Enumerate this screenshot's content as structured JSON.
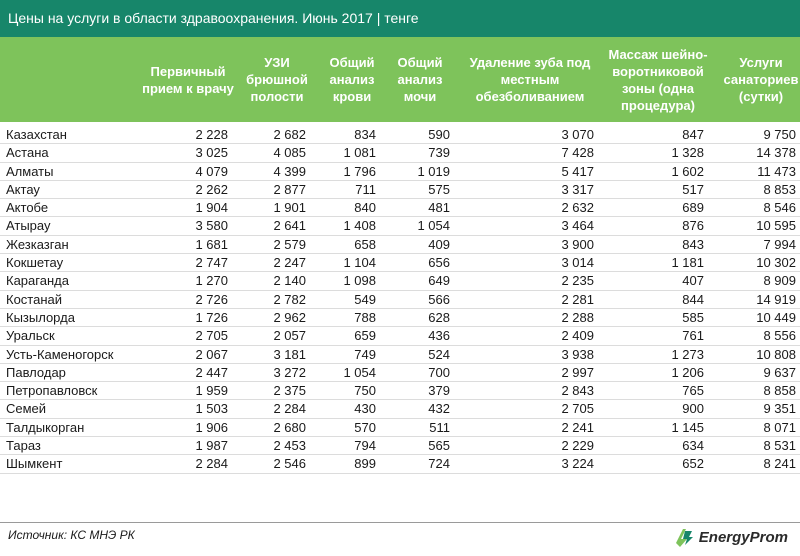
{
  "title": "Цены на услуги в области здравоохранения. Июнь 2017 | тенге",
  "chart_data": {
    "type": "table",
    "columns": [
      "",
      "Первичный прием к врачу",
      "УЗИ брюшной полости",
      "Общий анализ крови",
      "Общий анализ мочи",
      "Удаление зуба под местным обезболиванием",
      "Массаж шейно-воротниковой зоны (одна процедура)",
      "Услуги санаториев (сутки)"
    ],
    "rows": [
      {
        "region": "Казахстан",
        "values": [
          "2 228",
          "2 682",
          "834",
          "590",
          "3 070",
          "847",
          "9 750"
        ]
      },
      {
        "region": "Астана",
        "values": [
          "3 025",
          "4 085",
          "1 081",
          "739",
          "7 428",
          "1 328",
          "14 378"
        ]
      },
      {
        "region": "Алматы",
        "values": [
          "4 079",
          "4 399",
          "1 796",
          "1 019",
          "5 417",
          "1 602",
          "11 473"
        ]
      },
      {
        "region": "Актау",
        "values": [
          "2 262",
          "2 877",
          "711",
          "575",
          "3 317",
          "517",
          "8 853"
        ]
      },
      {
        "region": "Актобе",
        "values": [
          "1 904",
          "1 901",
          "840",
          "481",
          "2 632",
          "689",
          "8 546"
        ]
      },
      {
        "region": "Атырау",
        "values": [
          "3 580",
          "2 641",
          "1 408",
          "1 054",
          "3 464",
          "876",
          "10 595"
        ]
      },
      {
        "region": "Жезказган",
        "values": [
          "1 681",
          "2 579",
          "658",
          "409",
          "3 900",
          "843",
          "7 994"
        ]
      },
      {
        "region": "Кокшетау",
        "values": [
          "2 747",
          "2 247",
          "1 104",
          "656",
          "3 014",
          "1 181",
          "10 302"
        ]
      },
      {
        "region": "Караганда",
        "values": [
          "1 270",
          "2 140",
          "1 098",
          "649",
          "2 235",
          "407",
          "8 909"
        ]
      },
      {
        "region": "Костанай",
        "values": [
          "2 726",
          "2 782",
          "549",
          "566",
          "2 281",
          "844",
          "14 919"
        ]
      },
      {
        "region": "Кызылорда",
        "values": [
          "1 726",
          "2 962",
          "788",
          "628",
          "2 288",
          "585",
          "10 449"
        ]
      },
      {
        "region": "Уральск",
        "values": [
          "2 705",
          "2 057",
          "659",
          "436",
          "2 409",
          "761",
          "8 556"
        ]
      },
      {
        "region": "Усть-Каменогорск",
        "values": [
          "2 067",
          "3 181",
          "749",
          "524",
          "3 938",
          "1 273",
          "10 808"
        ]
      },
      {
        "region": "Павлодар",
        "values": [
          "2 447",
          "3 272",
          "1 054",
          "700",
          "2 997",
          "1 206",
          "9 637"
        ]
      },
      {
        "region": "Петропавловск",
        "values": [
          "1 959",
          "2 375",
          "750",
          "379",
          "2 843",
          "765",
          "8 858"
        ]
      },
      {
        "region": "Семей",
        "values": [
          "1 503",
          "2 284",
          "430",
          "432",
          "2 705",
          "900",
          "9 351"
        ]
      },
      {
        "region": "Талдыкорган",
        "values": [
          "1 906",
          "2 680",
          "570",
          "511",
          "2 241",
          "1 145",
          "8 071"
        ]
      },
      {
        "region": "Тараз",
        "values": [
          "1 987",
          "2 453",
          "794",
          "565",
          "2 229",
          "634",
          "8 531"
        ]
      },
      {
        "region": "Шымкент",
        "values": [
          "2 284",
          "2 546",
          "899",
          "724",
          "3 224",
          "652",
          "8 241"
        ]
      }
    ]
  },
  "footer": {
    "source": "Источник: КС МНЭ РК",
    "logo_text": "EnergyProm"
  },
  "colors": {
    "title_bg": "#17866a",
    "header_bg": "#7ec35b",
    "logo_accent": "#7ec35b"
  }
}
